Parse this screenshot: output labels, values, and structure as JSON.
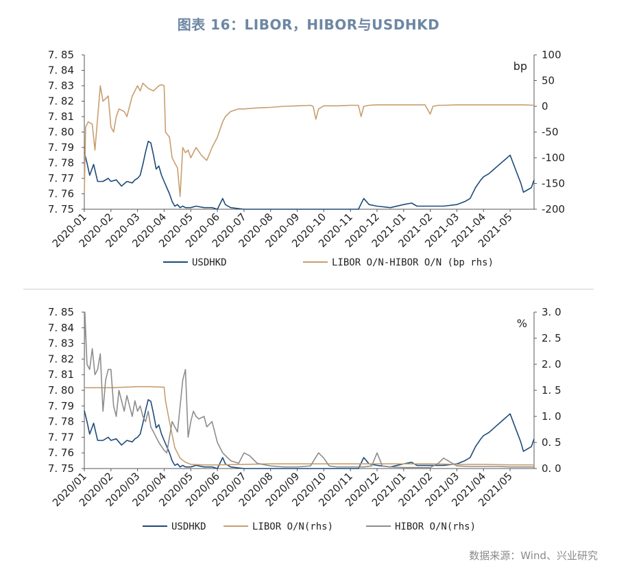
{
  "title": "图表 16：LIBOR，HIBOR与USDHKD",
  "source": "数据来源：Wind、兴业研究",
  "colors": {
    "usdhkd": "#1c4a78",
    "libor": "#c79e6f",
    "hibor": "#8c8c8c",
    "title": "#6d87a3"
  },
  "chart_data": [
    {
      "type": "line",
      "unit_right": "bp",
      "x_ticks": [
        "2020-01",
        "2020-02",
        "2020-03",
        "2020-04",
        "2020-05",
        "2020-06",
        "2020-07",
        "2020-08",
        "2020-09",
        "2020-10",
        "2020-11",
        "2020-12",
        "2021-01",
        "2021-02",
        "2021-03",
        "2021-04",
        "2021-05"
      ],
      "y_left": {
        "ticks": [
          "7.85",
          "7.84",
          "7.83",
          "7.82",
          "7.81",
          "7.80",
          "7.79",
          "7.78",
          "7.77",
          "7.76",
          "7.75"
        ],
        "range": [
          7.75,
          7.85
        ]
      },
      "y_right": {
        "ticks": [
          "100",
          "50",
          "0",
          "-50",
          "-100",
          "-150",
          "-200"
        ],
        "range": [
          -200,
          100
        ]
      },
      "series": [
        {
          "name": "USDHKD",
          "axis": "left",
          "x": [
            0,
            0.1,
            0.2,
            0.35,
            0.5,
            0.7,
            0.9,
            1.0,
            1.2,
            1.4,
            1.6,
            1.8,
            1.9,
            2.0,
            2.1,
            2.2,
            2.3,
            2.4,
            2.5,
            2.6,
            2.7,
            2.8,
            2.9,
            3.0,
            3.1,
            3.2,
            3.3,
            3.4,
            3.5,
            3.6,
            3.7,
            3.8,
            4.0,
            4.2,
            4.5,
            4.8,
            5.0,
            5.2,
            5.3,
            5.5,
            6,
            6.5,
            7,
            7.5,
            8,
            8.5,
            9,
            9.5,
            10,
            10.3,
            10.5,
            10.7,
            11,
            11.5,
            12,
            12.3,
            12.5,
            12.8,
            13,
            13.5,
            14,
            14.3,
            14.5,
            14.7,
            14.9,
            15,
            15.2,
            15.4,
            15.6,
            15.8,
            16,
            16.2,
            16.4,
            16.5,
            16.6,
            16.8,
            16.9
          ],
          "y": [
            7.787,
            7.78,
            7.772,
            7.779,
            7.768,
            7.768,
            7.77,
            7.768,
            7.769,
            7.765,
            7.768,
            7.767,
            7.769,
            7.77,
            7.772,
            7.779,
            7.787,
            7.794,
            7.793,
            7.785,
            7.776,
            7.778,
            7.772,
            7.768,
            7.764,
            7.76,
            7.755,
            7.752,
            7.753,
            7.751,
            7.752,
            7.751,
            7.751,
            7.752,
            7.751,
            7.751,
            7.75,
            7.757,
            7.753,
            7.751,
            7.75,
            7.75,
            7.75,
            7.75,
            7.75,
            7.75,
            7.75,
            7.75,
            7.75,
            7.75,
            7.757,
            7.753,
            7.752,
            7.751,
            7.753,
            7.754,
            7.752,
            7.752,
            7.752,
            7.752,
            7.753,
            7.755,
            7.757,
            7.764,
            7.769,
            7.771,
            7.773,
            7.776,
            7.779,
            7.782,
            7.785,
            7.776,
            7.767,
            7.761,
            7.762,
            7.764,
            7.769
          ]
        },
        {
          "name": "LIBOR O/N-HIBOR O/N (bp rhs)",
          "axis": "right",
          "x": [
            0,
            0.05,
            0.15,
            0.3,
            0.4,
            0.6,
            0.7,
            0.8,
            0.9,
            1.0,
            1.1,
            1.2,
            1.3,
            1.5,
            1.6,
            1.8,
            2.0,
            2.1,
            2.2,
            2.4,
            2.6,
            2.8,
            2.9,
            3.0,
            3.05,
            3.2,
            3.3,
            3.5,
            3.6,
            3.7,
            3.8,
            3.9,
            4.0,
            4.1,
            4.2,
            4.4,
            4.6,
            4.8,
            5.0,
            5.2,
            5.3,
            5.5,
            5.8,
            6,
            6.5,
            7,
            7.5,
            8,
            8.5,
            8.6,
            8.7,
            8.8,
            9,
            9.5,
            10,
            10.3,
            10.4,
            10.5,
            10.7,
            11,
            11.5,
            12,
            12.5,
            12.8,
            13,
            13.1,
            13.3,
            13.5,
            14,
            14.5,
            15,
            15.5,
            16,
            16.5,
            16.9
          ],
          "y": [
            -170,
            -40,
            -30,
            -35,
            -85,
            40,
            10,
            15,
            20,
            -40,
            -50,
            -20,
            -5,
            -10,
            -20,
            20,
            40,
            30,
            45,
            35,
            30,
            40,
            42,
            40,
            -50,
            -60,
            -100,
            -120,
            -175,
            -80,
            -90,
            -85,
            -100,
            -90,
            -80,
            -95,
            -105,
            -80,
            -60,
            -30,
            -20,
            -10,
            -5,
            -5,
            -3,
            -2,
            0,
            1,
            2,
            0,
            -25,
            -5,
            1,
            1,
            2,
            2,
            -20,
            0,
            2,
            3,
            3,
            3,
            3,
            3,
            -15,
            0,
            2,
            2,
            3,
            3,
            3,
            3,
            3,
            3,
            2
          ]
        }
      ]
    },
    {
      "type": "line",
      "unit_right": "%",
      "x_ticks": [
        "2020/01",
        "2020/02",
        "2020/03",
        "2020/04",
        "2020/05",
        "2020/06",
        "2020/07",
        "2020/08",
        "2020/09",
        "2020/10",
        "2020/11",
        "2020/12",
        "2021/01",
        "2021/02",
        "2021/03",
        "2021/04",
        "2021/05"
      ],
      "y_left": {
        "ticks": [
          "7.85",
          "7.84",
          "7.83",
          "7.82",
          "7.81",
          "7.80",
          "7.79",
          "7.78",
          "7.77",
          "7.76",
          "7.75"
        ],
        "range": [
          7.75,
          7.85
        ]
      },
      "y_right": {
        "ticks": [
          "3.0",
          "2.5",
          "2.0",
          "1.5",
          "1.0",
          "0.5",
          "0.0"
        ],
        "range": [
          0,
          3
        ]
      },
      "series": [
        {
          "name": "USDHKD",
          "axis": "left",
          "x": [
            0,
            0.1,
            0.2,
            0.35,
            0.5,
            0.7,
            0.9,
            1.0,
            1.2,
            1.4,
            1.6,
            1.8,
            1.9,
            2.0,
            2.1,
            2.2,
            2.3,
            2.4,
            2.5,
            2.6,
            2.7,
            2.8,
            2.9,
            3.0,
            3.1,
            3.2,
            3.3,
            3.4,
            3.5,
            3.6,
            3.7,
            3.8,
            4.0,
            4.2,
            4.5,
            4.8,
            5.0,
            5.2,
            5.3,
            5.5,
            6,
            6.5,
            7,
            7.5,
            8,
            8.5,
            9,
            9.5,
            10,
            10.3,
            10.5,
            10.7,
            11,
            11.5,
            12,
            12.3,
            12.5,
            12.8,
            13,
            13.5,
            14,
            14.3,
            14.5,
            14.7,
            14.9,
            15,
            15.2,
            15.4,
            15.6,
            15.8,
            16,
            16.2,
            16.4,
            16.5,
            16.6,
            16.8,
            16.9
          ],
          "y": [
            7.787,
            7.78,
            7.772,
            7.779,
            7.768,
            7.768,
            7.77,
            7.768,
            7.769,
            7.765,
            7.768,
            7.767,
            7.769,
            7.77,
            7.772,
            7.779,
            7.787,
            7.794,
            7.793,
            7.785,
            7.776,
            7.778,
            7.772,
            7.768,
            7.764,
            7.76,
            7.755,
            7.752,
            7.753,
            7.751,
            7.752,
            7.751,
            7.751,
            7.752,
            7.751,
            7.751,
            7.75,
            7.757,
            7.753,
            7.751,
            7.75,
            7.75,
            7.75,
            7.75,
            7.75,
            7.75,
            7.75,
            7.75,
            7.75,
            7.75,
            7.757,
            7.753,
            7.752,
            7.751,
            7.753,
            7.754,
            7.752,
            7.752,
            7.752,
            7.752,
            7.753,
            7.755,
            7.757,
            7.764,
            7.769,
            7.771,
            7.773,
            7.776,
            7.779,
            7.782,
            7.785,
            7.776,
            7.767,
            7.761,
            7.762,
            7.764,
            7.769
          ]
        },
        {
          "name": "LIBOR O/N(rhs)",
          "axis": "right",
          "x": [
            0,
            0.5,
            1.0,
            1.5,
            2.0,
            2.5,
            3.0,
            3.05,
            3.2,
            3.4,
            3.6,
            3.8,
            4.0,
            4.5,
            5,
            6,
            7,
            8,
            9,
            10,
            11,
            12,
            13,
            14,
            15,
            16,
            16.9
          ],
          "y": [
            1.55,
            1.55,
            1.55,
            1.56,
            1.57,
            1.57,
            1.56,
            1.3,
            0.9,
            0.4,
            0.2,
            0.12,
            0.08,
            0.07,
            0.07,
            0.08,
            0.09,
            0.09,
            0.09,
            0.09,
            0.09,
            0.09,
            0.09,
            0.08,
            0.08,
            0.07,
            0.07
          ]
        },
        {
          "name": "HIBOR O/N(rhs)",
          "axis": "right",
          "x": [
            0,
            0.02,
            0.1,
            0.2,
            0.3,
            0.4,
            0.5,
            0.6,
            0.7,
            0.8,
            0.9,
            1.0,
            1.1,
            1.2,
            1.3,
            1.4,
            1.5,
            1.6,
            1.7,
            1.8,
            1.9,
            2.0,
            2.1,
            2.2,
            2.3,
            2.4,
            2.5,
            2.6,
            2.8,
            3.0,
            3.1,
            3.3,
            3.5,
            3.7,
            3.8,
            3.9,
            4.0,
            4.1,
            4.2,
            4.3,
            4.5,
            4.6,
            4.8,
            5.0,
            5.2,
            5.5,
            5.8,
            6,
            6.2,
            6.5,
            7,
            7.5,
            8,
            8.5,
            8.8,
            9,
            9.2,
            9.5,
            10,
            10.5,
            10.8,
            11,
            11.2,
            11.5,
            12,
            12.5,
            13,
            13.3,
            13.5,
            14,
            14.5,
            15,
            15.5,
            16,
            16.5,
            16.9
          ],
          "y": [
            2.0,
            3.0,
            2.0,
            1.9,
            2.3,
            1.8,
            1.9,
            2.2,
            1.1,
            1.7,
            1.9,
            1.9,
            1.2,
            1.0,
            1.5,
            1.3,
            1.1,
            1.4,
            1.2,
            1.0,
            1.3,
            1.1,
            1.2,
            1.0,
            0.9,
            1.1,
            0.8,
            0.7,
            0.5,
            0.35,
            0.3,
            0.9,
            0.7,
            1.7,
            1.9,
            0.6,
            0.9,
            1.1,
            1.0,
            0.95,
            1.0,
            0.8,
            0.9,
            0.5,
            0.3,
            0.15,
            0.1,
            0.3,
            0.25,
            0.1,
            0.05,
            0.03,
            0.03,
            0.05,
            0.3,
            0.2,
            0.05,
            0.03,
            0.03,
            0.03,
            0.05,
            0.3,
            0.05,
            0.03,
            0.02,
            0.02,
            0.02,
            0.1,
            0.2,
            0.05,
            0.04,
            0.04,
            0.04,
            0.03,
            0.03,
            0.03
          ]
        }
      ]
    }
  ]
}
